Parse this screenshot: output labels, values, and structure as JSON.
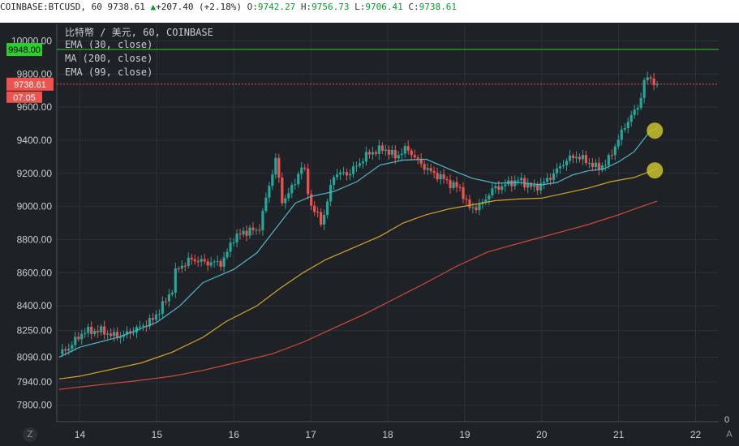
{
  "header": {
    "symbol": "COINBASE:BTCUSD, 60",
    "last": "9738.61",
    "change": "+207.40 (+2.18%)",
    "open_label": "O:",
    "open": "9742.27",
    "high_label": "H:",
    "high": "9756.73",
    "low_label": "L:",
    "low": "9706.41",
    "close_label": "C:",
    "close": "9738.61"
  },
  "legend": {
    "main": "比特幣 / 美元, 60, COINBASE",
    "ema30": "EMA (30, close)",
    "ma200": "MA (200, close)",
    "ema99": "EMA (99, close)"
  },
  "badges": {
    "hline_price": "9948.00",
    "last_price": "9738.61",
    "countdown": "07:05"
  },
  "buttons": {
    "zoom": "Z",
    "auto": "A",
    "scale_zero": "0"
  },
  "colors": {
    "up": "#26a69a",
    "down": "#ef5350",
    "ema30": "#4fb8c9",
    "ma200": "#d1493e",
    "ema99": "#d4a42a",
    "hline": "#2ccf2c",
    "marker": "#c9c22a"
  },
  "chart_data": {
    "type": "candlestick",
    "symbol": "BTCUSD",
    "interval": "60",
    "x_ticks": [
      "14",
      "15",
      "16",
      "17",
      "18",
      "19",
      "20",
      "21",
      "22"
    ],
    "y_ticks": [
      10000.0,
      9800.0,
      9600.0,
      9400.0,
      9200.0,
      9000.0,
      8800.0,
      8600.0,
      8400.0,
      8250.0,
      8090.0,
      7940.0,
      7800.0
    ],
    "ylim": [
      7700,
      10100
    ],
    "xlim": [
      13.7,
      22.3
    ],
    "horizontal_line": 9948.0,
    "last_price": 9738.61,
    "candle_path": [
      [
        13.73,
        8108
      ],
      [
        13.85,
        8145
      ],
      [
        14.05,
        8245
      ],
      [
        14.3,
        8250
      ],
      [
        14.4,
        8222
      ],
      [
        14.55,
        8218
      ],
      [
        14.75,
        8262
      ],
      [
        14.95,
        8318
      ],
      [
        15.1,
        8420
      ],
      [
        15.2,
        8500
      ],
      [
        15.25,
        8620
      ],
      [
        15.45,
        8682
      ],
      [
        15.65,
        8660
      ],
      [
        15.85,
        8660
      ],
      [
        16.0,
        8812
      ],
      [
        16.2,
        8858
      ],
      [
        16.32,
        8850
      ],
      [
        16.4,
        9010
      ],
      [
        16.55,
        9300
      ],
      [
        16.62,
        9025
      ],
      [
        16.75,
        9105
      ],
      [
        16.9,
        9260
      ],
      [
        17.0,
        9005
      ],
      [
        17.15,
        8900
      ],
      [
        17.3,
        9195
      ],
      [
        17.5,
        9200
      ],
      [
        17.75,
        9320
      ],
      [
        17.95,
        9350
      ],
      [
        18.1,
        9300
      ],
      [
        18.25,
        9352
      ],
      [
        18.4,
        9270
      ],
      [
        18.55,
        9210
      ],
      [
        18.7,
        9175
      ],
      [
        18.8,
        9140
      ],
      [
        18.95,
        9105
      ],
      [
        19.05,
        8990
      ],
      [
        19.2,
        9000
      ],
      [
        19.35,
        9100
      ],
      [
        19.55,
        9135
      ],
      [
        19.7,
        9160
      ],
      [
        19.9,
        9110
      ],
      [
        20.05,
        9150
      ],
      [
        20.2,
        9220
      ],
      [
        20.32,
        9280
      ],
      [
        20.45,
        9305
      ],
      [
        20.6,
        9270
      ],
      [
        20.72,
        9230
      ],
      [
        20.85,
        9265
      ],
      [
        21.0,
        9410
      ],
      [
        21.12,
        9520
      ],
      [
        21.25,
        9600
      ],
      [
        21.35,
        9780
      ],
      [
        21.42,
        9770
      ],
      [
        21.5,
        9738.61
      ]
    ],
    "series": [
      {
        "name": "EMA (30, close)",
        "points": [
          [
            13.73,
            8090
          ],
          [
            14.0,
            8150
          ],
          [
            14.5,
            8210
          ],
          [
            15.0,
            8300
          ],
          [
            15.3,
            8400
          ],
          [
            15.6,
            8540
          ],
          [
            16.0,
            8620
          ],
          [
            16.3,
            8720
          ],
          [
            16.6,
            8900
          ],
          [
            16.8,
            9020
          ],
          [
            17.0,
            9060
          ],
          [
            17.3,
            9090
          ],
          [
            17.6,
            9150
          ],
          [
            17.9,
            9250
          ],
          [
            18.2,
            9280
          ],
          [
            18.5,
            9285
          ],
          [
            18.8,
            9225
          ],
          [
            19.1,
            9170
          ],
          [
            19.4,
            9140
          ],
          [
            19.7,
            9145
          ],
          [
            20.0,
            9130
          ],
          [
            20.2,
            9145
          ],
          [
            20.4,
            9190
          ],
          [
            20.6,
            9215
          ],
          [
            20.8,
            9225
          ],
          [
            21.0,
            9270
          ],
          [
            21.2,
            9330
          ],
          [
            21.4,
            9450
          ],
          [
            21.5,
            9475
          ]
        ]
      },
      {
        "name": "MA (200, close)",
        "points": [
          [
            13.73,
            7895
          ],
          [
            14.2,
            7920
          ],
          [
            14.7,
            7945
          ],
          [
            15.2,
            7975
          ],
          [
            15.6,
            8010
          ],
          [
            16.1,
            8065
          ],
          [
            16.5,
            8110
          ],
          [
            16.9,
            8180
          ],
          [
            17.3,
            8265
          ],
          [
            17.7,
            8350
          ],
          [
            18.1,
            8445
          ],
          [
            18.5,
            8540
          ],
          [
            18.9,
            8640
          ],
          [
            19.3,
            8725
          ],
          [
            19.8,
            8790
          ],
          [
            20.2,
            8840
          ],
          [
            20.6,
            8890
          ],
          [
            21.0,
            8950
          ],
          [
            21.3,
            9000
          ],
          [
            21.5,
            9032
          ]
        ]
      },
      {
        "name": "EMA (99, close)",
        "points": [
          [
            13.73,
            7958
          ],
          [
            14.0,
            7975
          ],
          [
            14.4,
            8015
          ],
          [
            14.8,
            8055
          ],
          [
            15.2,
            8120
          ],
          [
            15.6,
            8210
          ],
          [
            15.9,
            8305
          ],
          [
            16.3,
            8400
          ],
          [
            16.6,
            8505
          ],
          [
            16.9,
            8600
          ],
          [
            17.2,
            8680
          ],
          [
            17.5,
            8740
          ],
          [
            17.9,
            8820
          ],
          [
            18.2,
            8900
          ],
          [
            18.5,
            8950
          ],
          [
            18.8,
            8985
          ],
          [
            19.1,
            9010
          ],
          [
            19.4,
            9035
          ],
          [
            19.7,
            9045
          ],
          [
            20.0,
            9050
          ],
          [
            20.3,
            9080
          ],
          [
            20.6,
            9110
          ],
          [
            20.9,
            9150
          ],
          [
            21.2,
            9175
          ],
          [
            21.4,
            9210
          ],
          [
            21.5,
            9230
          ]
        ]
      }
    ],
    "annotations": [
      {
        "type": "circle",
        "x": 21.47,
        "y": 9458
      },
      {
        "type": "circle",
        "x": 21.47,
        "y": 9218
      }
    ]
  }
}
